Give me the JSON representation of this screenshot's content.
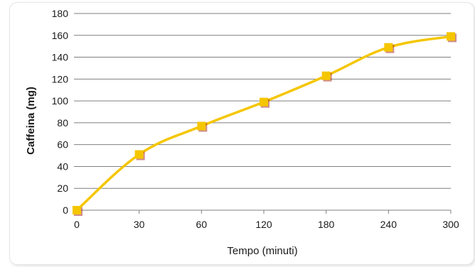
{
  "chart_data": {
    "type": "line",
    "title": "",
    "xlabel": "Tempo (minuti)",
    "ylabel": "Caffeina (mg)",
    "categories": [
      "0",
      "30",
      "60",
      "120",
      "180",
      "240",
      "300"
    ],
    "series": [
      {
        "values": [
          0,
          51,
          77,
          99,
          123,
          149,
          159
        ]
      }
    ],
    "ylim": [
      0,
      180
    ],
    "yticks": [
      "0",
      "20",
      "40",
      "60",
      "80",
      "100",
      "120",
      "140",
      "160",
      "180"
    ],
    "grid": true,
    "x_scale": "categorical",
    "colors": {
      "line": "#f5c600",
      "marker": "#f5c600",
      "grid": "#7f7f7f",
      "axis": "#7f7f7f"
    }
  }
}
